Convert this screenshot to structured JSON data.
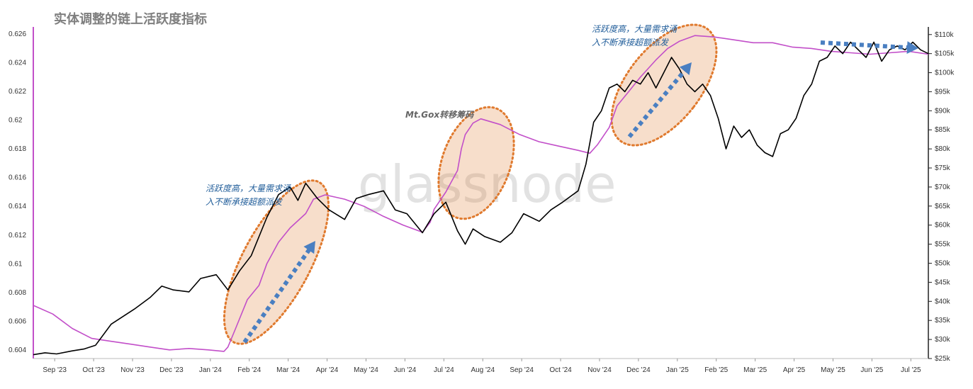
{
  "chart_data": {
    "type": "line",
    "title": "实体调整的链上活跃度指标",
    "watermark": "glassnode",
    "x_ticks": [
      "Sep '23",
      "Oct '23",
      "Nov '23",
      "Dec '23",
      "Jan '24",
      "Feb '24",
      "Mar '24",
      "Apr '24",
      "May '24",
      "Jun '24",
      "Jul '24",
      "Aug '24",
      "Sep '24",
      "Oct '24",
      "Nov '24",
      "Dec '24",
      "Jan '25",
      "Feb '25",
      "Mar '25",
      "Apr '25",
      "May '25",
      "Jun '25",
      "Jul '25"
    ],
    "x_range": [
      0,
      23
    ],
    "left_axis": {
      "ylim": [
        0.6034,
        0.6265
      ],
      "ticks": [
        0.626,
        0.624,
        0.622,
        0.62,
        0.618,
        0.616,
        0.614,
        0.612,
        0.61,
        0.608,
        0.606,
        0.604
      ],
      "tick_labels": [
        "0.626",
        "0.624",
        "0.622",
        "0.62",
        "0.618",
        "0.616",
        "0.614",
        "0.612",
        "0.61",
        "0.608",
        "0.606",
        "0.604"
      ],
      "color": "#c24fc9"
    },
    "right_axis": {
      "ylim": [
        25000,
        112000
      ],
      "ticks": [
        110000,
        105000,
        100000,
        95000,
        90000,
        85000,
        80000,
        75000,
        70000,
        65000,
        60000,
        55000,
        50000,
        45000,
        40000,
        35000,
        30000,
        25000
      ],
      "tick_labels": [
        "$110k",
        "$105k",
        "$100k",
        "$95k",
        "$90k",
        "$85k",
        "$80k",
        "$75k",
        "$70k",
        "$65k",
        "$60k",
        "$55k",
        "$50k",
        "$45k",
        "$40k",
        "$35k",
        "$30k",
        "$25k"
      ]
    },
    "series": [
      {
        "axis": "left",
        "color": "#c24fc9",
        "x": [
          0,
          0.5,
          1,
          1.5,
          2,
          2.5,
          3,
          3.5,
          4,
          4.5,
          4.9,
          5.0,
          5.2,
          5.5,
          5.8,
          6.0,
          6.3,
          6.6,
          7.0,
          7.2,
          7.5,
          8.0,
          8.5,
          9.0,
          9.5,
          10.0,
          10.2,
          10.3,
          10.6,
          10.9,
          11.0,
          11.1,
          11.3,
          11.5,
          12.0,
          12.5,
          13.0,
          13.5,
          14.0,
          14.3,
          14.5,
          14.8,
          15.0,
          15.3,
          15.6,
          16.0,
          16.3,
          16.6,
          17.0,
          17.5,
          18.0,
          18.5,
          19.0,
          19.5,
          20.0,
          20.5,
          21.0,
          21.5,
          22.0,
          22.5,
          23.0
        ],
        "values": [
          0.6071,
          0.6065,
          0.6055,
          0.6048,
          0.6046,
          0.6044,
          0.6042,
          0.604,
          0.6041,
          0.604,
          0.6039,
          0.6042,
          0.6055,
          0.6075,
          0.6085,
          0.61,
          0.6115,
          0.6125,
          0.6135,
          0.6145,
          0.6148,
          0.6145,
          0.614,
          0.6133,
          0.6127,
          0.6122,
          0.6129,
          0.6138,
          0.615,
          0.6165,
          0.618,
          0.619,
          0.6198,
          0.6201,
          0.6197,
          0.619,
          0.6185,
          0.6182,
          0.6179,
          0.6177,
          0.6183,
          0.6195,
          0.621,
          0.622,
          0.623,
          0.6242,
          0.625,
          0.6255,
          0.6259,
          0.6258,
          0.6256,
          0.6254,
          0.6254,
          0.6251,
          0.625,
          0.6248,
          0.6247,
          0.6246,
          0.6247,
          0.6248,
          0.6246
        ]
      },
      {
        "axis": "right",
        "color": "#000000",
        "x": [
          0,
          0.3,
          0.6,
          1,
          1.3,
          1.6,
          2,
          2.3,
          2.6,
          3.0,
          3.3,
          3.6,
          4.0,
          4.3,
          4.7,
          5.0,
          5.3,
          5.6,
          6.0,
          6.3,
          6.6,
          6.8,
          7.0,
          7.3,
          7.6,
          8.0,
          8.3,
          8.6,
          9.0,
          9.3,
          9.6,
          10.0,
          10.3,
          10.6,
          10.9,
          11.1,
          11.3,
          11.6,
          12.0,
          12.3,
          12.6,
          13.0,
          13.3,
          13.6,
          14.0,
          14.2,
          14.4,
          14.6,
          14.8,
          15.0,
          15.2,
          15.4,
          15.6,
          15.8,
          16.0,
          16.2,
          16.4,
          16.6,
          16.8,
          17.0,
          17.2,
          17.4,
          17.6,
          17.8,
          18.0,
          18.2,
          18.4,
          18.6,
          18.8,
          19.0,
          19.2,
          19.4,
          19.6,
          19.8,
          20.0,
          20.2,
          20.4,
          20.6,
          20.8,
          21.0,
          21.2,
          21.4,
          21.6,
          21.8,
          22.0,
          22.2,
          22.4,
          22.6,
          22.8,
          23.0
        ],
        "values": [
          26000,
          26500,
          26200,
          27000,
          27500,
          28500,
          34000,
          36000,
          38000,
          41000,
          44000,
          43000,
          42500,
          46000,
          47000,
          43000,
          48000,
          52000,
          62000,
          68000,
          70000,
          66500,
          71000,
          67000,
          64000,
          61500,
          67000,
          68000,
          69000,
          64000,
          63000,
          58000,
          63000,
          66000,
          58500,
          55000,
          59000,
          57000,
          55500,
          58000,
          63000,
          61000,
          64000,
          66000,
          69000,
          76000,
          87000,
          90000,
          96000,
          97000,
          95000,
          98000,
          97000,
          100000,
          96000,
          100000,
          104000,
          101000,
          97000,
          95000,
          97000,
          94000,
          88000,
          80000,
          86000,
          83000,
          85000,
          81000,
          79000,
          78000,
          84000,
          85000,
          88000,
          94000,
          97000,
          103000,
          104000,
          107000,
          105000,
          108000,
          106000,
          104000,
          108000,
          103000,
          106000,
          107000,
          106000,
          108000,
          106000,
          105000
        ]
      }
    ],
    "annotations": [
      {
        "lines": [
          "活跃度高，大量需求涌",
          "入不断承接超额派发"
        ]
      },
      {
        "lines": [
          "Mt.Gox转移筹码"
        ]
      },
      {
        "lines": [
          "活跃度高，大量需求涌",
          "入不断承接超额派发"
        ]
      }
    ],
    "highlight_color": "#e07a2e",
    "arrow_color": "#4a7fc1"
  }
}
